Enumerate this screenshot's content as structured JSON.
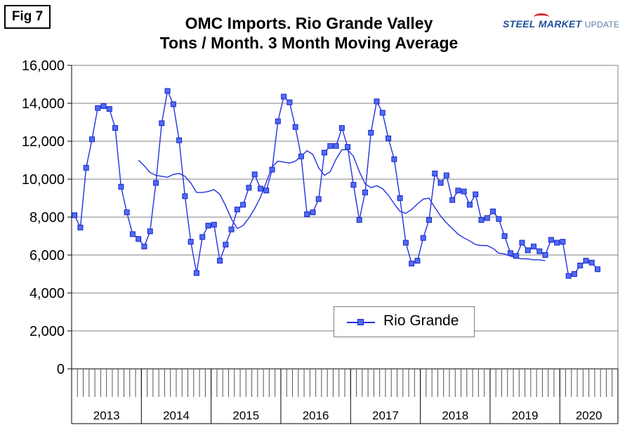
{
  "figure_label": "Fig 7",
  "logo": {
    "steel": "STEEL",
    "market": "MARKET",
    "update": "UPDATE"
  },
  "colors": {
    "series": "#2231e0",
    "marker_fill": "#4f6cf5",
    "grid": "#808080",
    "plot_bg": "#ffffff"
  },
  "chart_data": {
    "type": "line",
    "title_line1": "OMC Imports. Rio Grande Valley",
    "title_line2": "Tons / Month. 3 Month Moving Average",
    "xlabel": "",
    "ylabel": "",
    "ylim": [
      0,
      16000
    ],
    "yticks": [
      "0",
      "2,000",
      "4,000",
      "6,000",
      "8,000",
      "10,000",
      "12,000",
      "14,000",
      "16,000"
    ],
    "ytick_values": [
      0,
      2000,
      4000,
      6000,
      8000,
      10000,
      12000,
      14000,
      16000
    ],
    "x_groups": [
      "2013",
      "2014",
      "2015",
      "2016",
      "2017",
      "2018",
      "2019",
      "2020"
    ],
    "months_total": 94,
    "grid": "horizontal",
    "legend": {
      "position": "lower-center",
      "entries": [
        "Rio Grande"
      ]
    },
    "series": [
      {
        "name": "Rio Grande",
        "marker": "square",
        "start": "2013-01",
        "values": [
          8100,
          7450,
          10600,
          12100,
          13750,
          13850,
          13700,
          12700,
          9600,
          8250,
          7100,
          6850,
          6450,
          7250,
          9800,
          12950,
          14650,
          13950,
          12050,
          9100,
          6700,
          5050,
          6950,
          7550,
          7600,
          5700,
          6550,
          7350,
          8400,
          8650,
          9550,
          10250,
          9500,
          9400,
          10500,
          13050,
          14350,
          14050,
          12750,
          11200,
          8150,
          8250,
          8950,
          11400,
          11750,
          11750,
          12700,
          11700,
          9700,
          7850,
          9300,
          12450,
          14100,
          13500,
          12150,
          11050,
          9000,
          6650,
          5550,
          5700,
          6900,
          7850,
          10300,
          9800,
          10200,
          8900,
          9400,
          9350,
          8650,
          9200,
          7850,
          7950,
          8300,
          7900,
          7000,
          6100,
          5950,
          6650,
          6250,
          6450,
          6200,
          6000,
          6800,
          6650,
          6700,
          4900,
          5000,
          5450,
          5700,
          5600,
          5250
        ]
      },
      {
        "name": "",
        "marker": "none",
        "start": "2013-12",
        "values": [
          11000,
          10700,
          10350,
          10200,
          10150,
          10100,
          10250,
          10300,
          10150,
          9800,
          9300,
          9300,
          9350,
          9450,
          9200,
          8600,
          7900,
          7400,
          7550,
          7950,
          8450,
          9050,
          9850,
          10650,
          10950,
          10900,
          10850,
          10950,
          11200,
          11500,
          11300,
          10600,
          10200,
          10400,
          11050,
          11550,
          11550,
          11200,
          10400,
          9750,
          9550,
          9650,
          9500,
          9150,
          8700,
          8300,
          8200,
          8400,
          8700,
          8950,
          9000,
          8500,
          8050,
          7700,
          7400,
          7100,
          6900,
          6750,
          6550,
          6500,
          6500,
          6350,
          6100,
          6050,
          5950,
          5850,
          5800,
          5800,
          5750,
          5750,
          5700
        ]
      }
    ]
  }
}
